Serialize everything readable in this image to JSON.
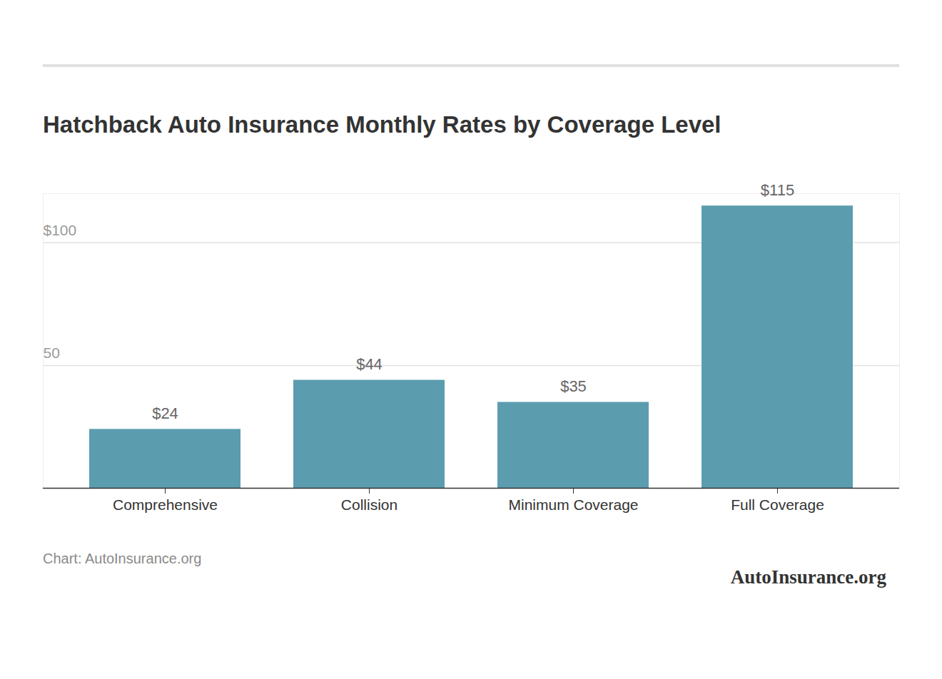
{
  "chart_data": {
    "type": "bar",
    "title": "Hatchback Auto Insurance Monthly Rates by Coverage Level",
    "categories": [
      "Comprehensive",
      "Collision",
      "Minimum Coverage",
      "Full Coverage"
    ],
    "values": [
      24,
      44,
      35,
      115
    ],
    "value_labels": [
      "$24",
      "$44",
      "$35",
      "$115"
    ],
    "data_labels": true,
    "color": "#5b9daf",
    "ylim": [
      0,
      120
    ],
    "yticks": [
      50,
      {
        "value": 100,
        "label": "$100"
      }
    ],
    "grid": true,
    "caption": "Chart: AutoInsurance.org",
    "brand": "AutoInsurance.org"
  }
}
